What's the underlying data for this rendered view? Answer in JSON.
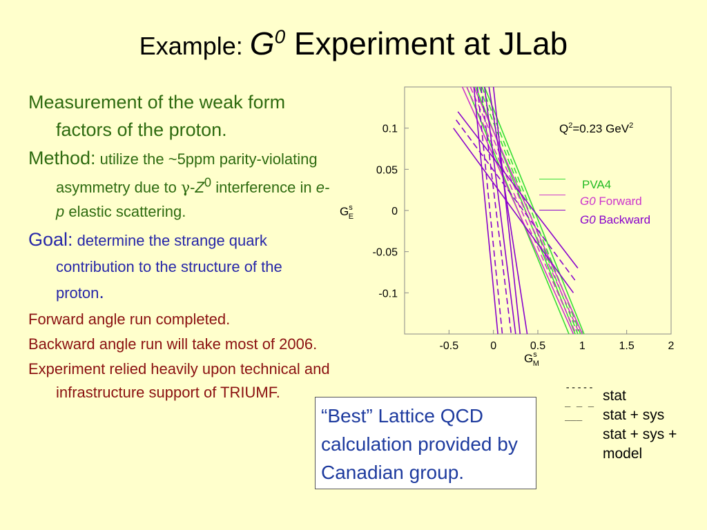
{
  "title": {
    "prefix": "Example: ",
    "g": "G",
    "g_sup": "0",
    "suffix": " Experiment at JLab"
  },
  "bullets": {
    "measurement": "Measurement of the weak form factors of the proton.",
    "method_label": "Method:",
    "method_text_1": " utilize the ~5ppm parity-violating asymmetry due to ",
    "gamma": "γ",
    "dash": "-",
    "z": "Z",
    "z_sup": "0",
    "method_text_2": " interference in ",
    "ep": "e-p",
    "method_text_3": " elastic scattering.",
    "goal_label": "Goal:",
    "goal_text": " determine the strange quark contribution to the structure of the proton",
    "goal_period": ".",
    "forward": "Forward angle run completed.",
    "backward": "Backward angle run will take most of 2006.",
    "relied": "Experiment relied heavily upon technical and infrastructure support of TRIUMF."
  },
  "colors": {
    "background": "#ffffcc",
    "green": "#2e6b10",
    "blue": "#2626a8",
    "red": "#8a1010",
    "pva4": "#33dd33",
    "g0_forward": "#cc33cc",
    "g0_backward": "#8800cc"
  },
  "chart_data": {
    "type": "line",
    "xlabel": "G",
    "xlabel_sup": "s",
    "xlabel_sub": "M",
    "ylabel": "G",
    "ylabel_sup": "s",
    "ylabel_sub": "E",
    "xlim": [
      -1.0,
      2.0
    ],
    "ylim": [
      -0.15,
      0.15
    ],
    "xticks": [
      "-0.5",
      "0",
      "0.5",
      "1",
      "1.5",
      "2"
    ],
    "xtick_values": [
      -0.5,
      0,
      0.5,
      1,
      1.5,
      2
    ],
    "yticks": [
      "0.1",
      "0.05",
      "0",
      "-0.05",
      "-0.1"
    ],
    "ytick_values": [
      0.1,
      0.05,
      0,
      -0.05,
      -0.1
    ],
    "annotation": "Q",
    "annotation_sup": "2",
    "annotation_rest": "=0.23 GeV",
    "annotation_sup2": "2",
    "grid": false,
    "series": [
      {
        "name": "PVA4",
        "color": "#33dd33",
        "lines": [
          {
            "style": "solid",
            "p": [
              [
                -0.2,
                0.15
              ],
              [
                0.92,
                -0.15
              ]
            ]
          },
          {
            "style": "solid",
            "p": [
              [
                -0.1,
                0.15
              ],
              [
                1.02,
                -0.15
              ]
            ]
          },
          {
            "style": "dashed",
            "p": [
              [
                -0.16,
                0.15
              ],
              [
                0.95,
                -0.15
              ]
            ]
          },
          {
            "style": "dashed",
            "p": [
              [
                -0.13,
                0.15
              ],
              [
                0.98,
                -0.15
              ]
            ]
          },
          {
            "style": "solid",
            "p": [
              [
                -0.3,
                0.15
              ],
              [
                0.85,
                -0.15
              ]
            ]
          }
        ]
      },
      {
        "name": "G0 Forward",
        "color": "#cc33cc",
        "lines": [
          {
            "style": "solid",
            "p": [
              [
                -0.35,
                0.15
              ],
              [
                0.9,
                -0.15
              ]
            ]
          },
          {
            "style": "solid",
            "p": [
              [
                -0.22,
                0.15
              ],
              [
                1.0,
                -0.15
              ]
            ]
          },
          {
            "style": "dashed",
            "p": [
              [
                -0.3,
                0.15
              ],
              [
                0.93,
                -0.15
              ]
            ]
          },
          {
            "style": "dashed",
            "p": [
              [
                -0.26,
                0.15
              ],
              [
                0.97,
                -0.15
              ]
            ]
          }
        ]
      },
      {
        "name": "G0 Backward",
        "color": "#8800cc",
        "lines": [
          {
            "style": "solid",
            "p": [
              [
                -0.22,
                0.15
              ],
              [
                0.05,
                -0.15
              ]
            ]
          },
          {
            "style": "solid",
            "p": [
              [
                -0.1,
                0.15
              ],
              [
                0.25,
                -0.15
              ]
            ]
          },
          {
            "style": "dashed",
            "p": [
              [
                -0.18,
                0.15
              ],
              [
                0.1,
                -0.15
              ]
            ]
          },
          {
            "style": "dashed",
            "p": [
              [
                -0.14,
                0.15
              ],
              [
                0.2,
                -0.15
              ]
            ]
          },
          {
            "style": "solid",
            "p": [
              [
                -0.05,
                0.15
              ],
              [
                0.38,
                -0.15
              ]
            ]
          },
          {
            "style": "solid",
            "p": [
              [
                0.0,
                0.15
              ],
              [
                0.3,
                -0.15
              ]
            ]
          },
          {
            "style": "solid",
            "p": [
              [
                -0.4,
                0.12
              ],
              [
                0.95,
                -0.07
              ]
            ]
          },
          {
            "style": "solid",
            "p": [
              [
                -0.45,
                0.1
              ],
              [
                0.9,
                -0.1
              ]
            ]
          },
          {
            "style": "dashed",
            "p": [
              [
                -0.42,
                0.11
              ],
              [
                0.92,
                -0.085
              ]
            ]
          }
        ]
      }
    ]
  },
  "legend": {
    "pva4": "PVA4",
    "g0": "G0",
    "forward": " Forward",
    "backward": " Backward"
  },
  "stat_key": {
    "dotted": "-----",
    "dashed": "_ _ _",
    "solid": "___"
  },
  "stat_labels": {
    "stat": "stat",
    "stat_sys": "stat + sys",
    "stat_sys_model": "stat + sys + model"
  },
  "box_text": "“Best” Lattice QCD calculation provided by Canadian group."
}
